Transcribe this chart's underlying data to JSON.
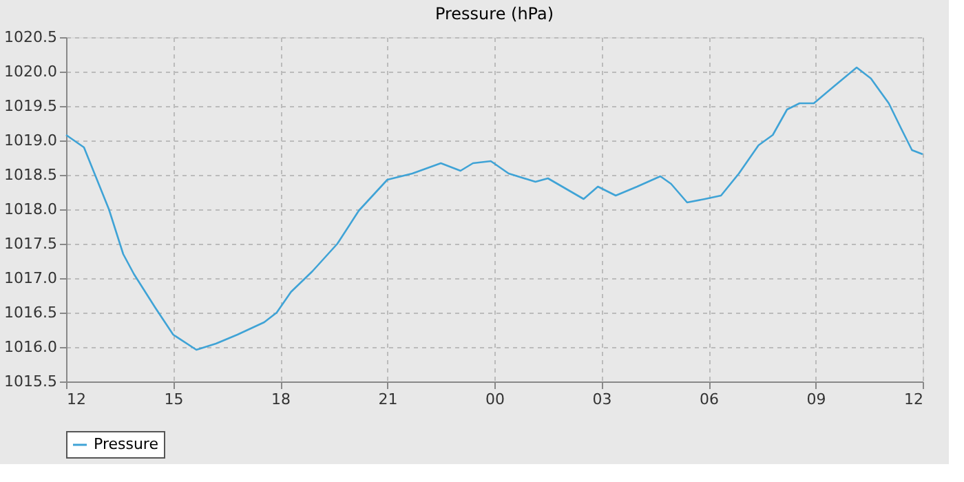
{
  "chart_data": {
    "type": "line",
    "title": "Pressure (hPa)",
    "x": [
      12,
      12.5,
      13.2,
      13.6,
      13.9,
      14.5,
      15,
      15.65,
      16.2,
      16.8,
      17.55,
      17.9,
      18.3,
      18.9,
      19.6,
      20.2,
      21,
      21.7,
      22.5,
      23.05,
      23.4,
      23.9,
      24.4,
      25.15,
      25.5,
      26.5,
      26.9,
      27.4,
      28,
      28.65,
      28.95,
      29.4,
      29.9,
      30.35,
      30.85,
      31.4,
      31.8,
      32.2,
      32.55,
      32.95,
      33.5,
      34.15,
      34.55,
      35.05,
      35.4,
      35.7,
      36
    ],
    "series": [
      {
        "name": "Pressure",
        "color": "#3fa3d6",
        "values": [
          1019.08,
          1018.9,
          1018.0,
          1017.35,
          1017.06,
          1016.57,
          1016.18,
          1015.96,
          1016.05,
          1016.18,
          1016.36,
          1016.5,
          1016.8,
          1017.1,
          1017.5,
          1017.98,
          1018.43,
          1018.52,
          1018.67,
          1018.56,
          1018.67,
          1018.7,
          1018.52,
          1018.4,
          1018.45,
          1018.15,
          1018.33,
          1018.2,
          1018.33,
          1018.48,
          1018.37,
          1018.1,
          1018.15,
          1018.2,
          1018.52,
          1018.93,
          1019.08,
          1019.45,
          1019.54,
          1019.54,
          1019.78,
          1020.06,
          1019.9,
          1019.54,
          1019.17,
          1018.86,
          1018.8
        ]
      }
    ],
    "xlim": [
      12,
      36
    ],
    "xticks": [
      {
        "value": 12,
        "label": "12"
      },
      {
        "value": 15,
        "label": "15"
      },
      {
        "value": 18,
        "label": "18"
      },
      {
        "value": 21,
        "label": "21"
      },
      {
        "value": 24,
        "label": "00"
      },
      {
        "value": 27,
        "label": "03"
      },
      {
        "value": 30,
        "label": "06"
      },
      {
        "value": 33,
        "label": "09"
      },
      {
        "value": 36,
        "label": "12"
      }
    ],
    "ylim": [
      1015.5,
      1020.5
    ],
    "yticks": [
      {
        "value": 1015.5,
        "label": "1015.5"
      },
      {
        "value": 1016,
        "label": "1016.0"
      },
      {
        "value": 1016.5,
        "label": "1016.5"
      },
      {
        "value": 1017,
        "label": "1017.0"
      },
      {
        "value": 1017.5,
        "label": "1017.5"
      },
      {
        "value": 1018,
        "label": "1018.0"
      },
      {
        "value": 1018.5,
        "label": "1018.5"
      },
      {
        "value": 1019,
        "label": "1019.0"
      },
      {
        "value": 1019.5,
        "label": "1019.5"
      },
      {
        "value": 1020,
        "label": "1020.0"
      },
      {
        "value": 1020.5,
        "label": "1020.5"
      }
    ],
    "grid": true,
    "legend": "bottom",
    "line_style": "solid"
  }
}
